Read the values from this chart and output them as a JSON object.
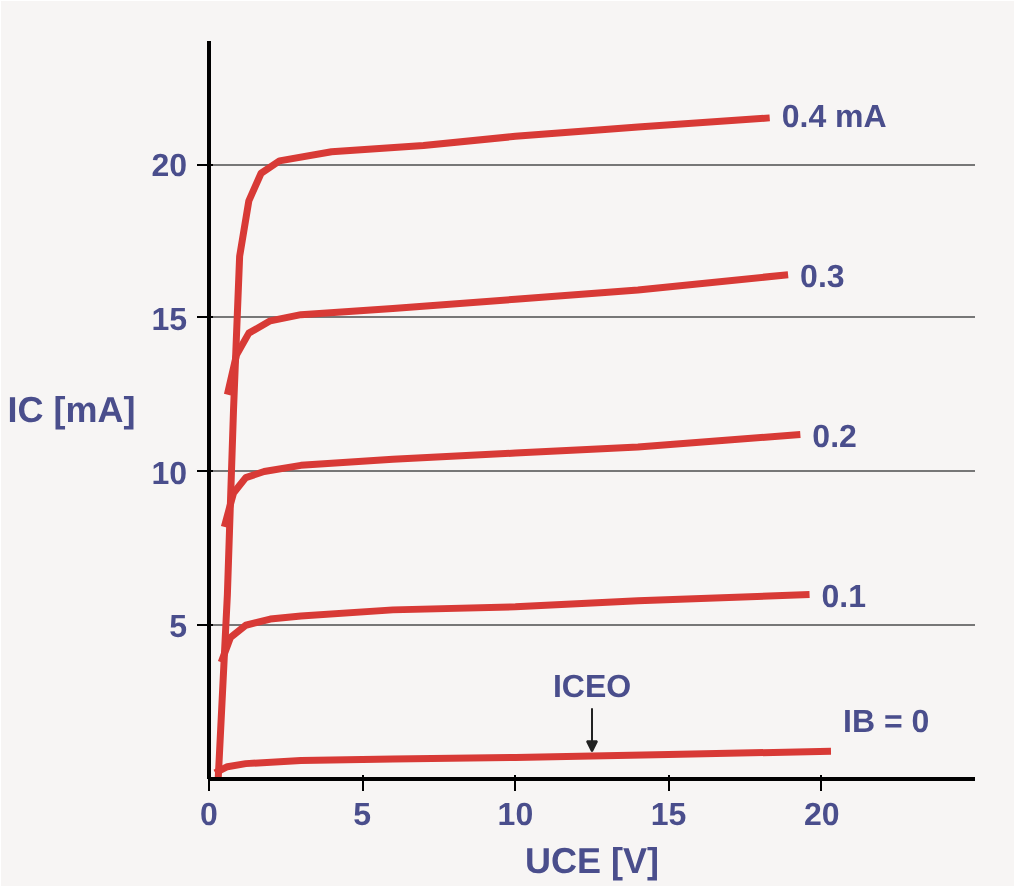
{
  "chart_data": {
    "type": "line",
    "xlabel": "UCE [V]",
    "ylabel": "IC [mA]",
    "xlim": [
      0,
      25
    ],
    "ylim": [
      0,
      24
    ],
    "xticks": [
      0,
      5,
      10,
      15,
      20
    ],
    "yticks": [
      5,
      10,
      15,
      20
    ],
    "grid": "y",
    "line_style": "solid",
    "marker": "none",
    "series": [
      {
        "name": "0.4 mA",
        "color": "#d83a36",
        "x": [
          0.3,
          0.6,
          0.8,
          1.0,
          1.3,
          1.7,
          2.3,
          4,
          7,
          10,
          14,
          18.3
        ],
        "values": [
          0,
          6,
          12,
          17,
          18.8,
          19.7,
          20.1,
          20.4,
          20.6,
          20.9,
          21.2,
          21.5
        ]
      },
      {
        "name": "0.3",
        "color": "#d83a36",
        "x": [
          0.6,
          0.9,
          1.3,
          2,
          3,
          6,
          10,
          14,
          18.9
        ],
        "values": [
          12.5,
          13.8,
          14.5,
          14.9,
          15.1,
          15.3,
          15.6,
          15.9,
          16.4
        ]
      },
      {
        "name": "0.2",
        "color": "#d83a36",
        "x": [
          0.5,
          0.8,
          1.2,
          1.8,
          3,
          6,
          10,
          14,
          19.3
        ],
        "values": [
          8.2,
          9.3,
          9.8,
          10.0,
          10.2,
          10.4,
          10.6,
          10.8,
          11.2
        ]
      },
      {
        "name": "0.1",
        "color": "#d83a36",
        "x": [
          0.4,
          0.7,
          1.2,
          2,
          3,
          6,
          10,
          14,
          19.6
        ],
        "values": [
          3.8,
          4.6,
          5.0,
          5.2,
          5.3,
          5.5,
          5.6,
          5.8,
          6.0
        ]
      },
      {
        "name": "IB = 0",
        "color": "#d83a36",
        "x": [
          0.2,
          0.6,
          1.2,
          3,
          6,
          10,
          15,
          20.3
        ],
        "values": [
          0.2,
          0.4,
          0.5,
          0.6,
          0.65,
          0.7,
          0.8,
          0.9
        ]
      }
    ],
    "annotations": [
      {
        "text": "ICEO",
        "x": 12.5,
        "y": 0.7
      }
    ]
  }
}
